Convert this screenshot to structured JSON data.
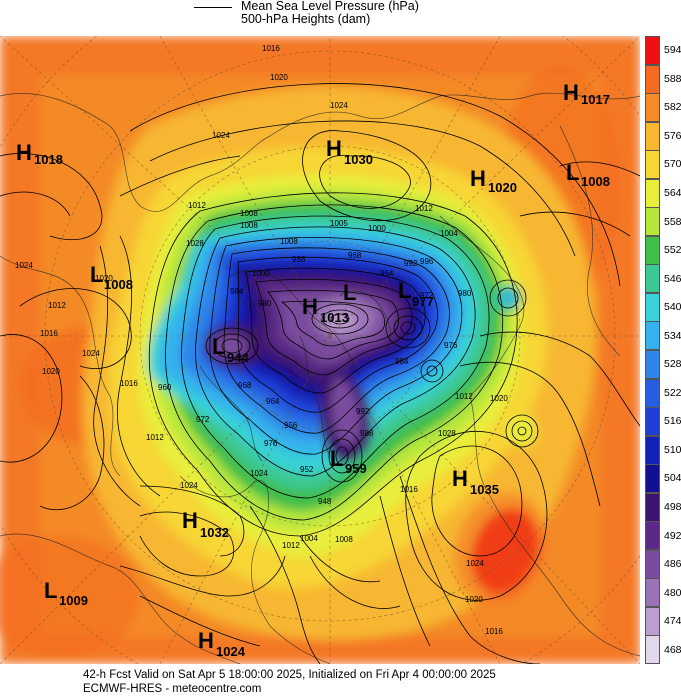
{
  "legend": {
    "line1": "Mean Sea Level Pressure (hPa)",
    "line2": "500-hPa Heights (dam)"
  },
  "footer": {
    "line1": "42-h Fcst Valid on Sat Apr  5 18:00:00 2025, Initialized on Fri Apr  4 00:00:00 2025",
    "line2": "ECMWF-HRES  - meteocentre.com"
  },
  "colorbar": [
    {
      "label": "594",
      "color": "#ee1111"
    },
    {
      "label": "588",
      "color": "#f46a22"
    },
    {
      "label": "582",
      "color": "#f48a28"
    },
    {
      "label": "576",
      "color": "#f7b730"
    },
    {
      "label": "570",
      "color": "#f7d636"
    },
    {
      "label": "564",
      "color": "#e8ee3a"
    },
    {
      "label": "558",
      "color": "#b6e63c"
    },
    {
      "label": "552",
      "color": "#3fbe48"
    },
    {
      "label": "546",
      "color": "#3cc892"
    },
    {
      "label": "540",
      "color": "#39d2d6"
    },
    {
      "label": "534",
      "color": "#35b2ec"
    },
    {
      "label": "528",
      "color": "#2f86e8"
    },
    {
      "label": "522",
      "color": "#275ee0"
    },
    {
      "label": "516",
      "color": "#1e3ed6"
    },
    {
      "label": "510",
      "color": "#1422b8"
    },
    {
      "label": "504",
      "color": "#121090"
    },
    {
      "label": "498",
      "color": "#3c1470"
    },
    {
      "label": "492",
      "color": "#5c2a86"
    },
    {
      "label": "486",
      "color": "#7a4c9e"
    },
    {
      "label": "480",
      "color": "#9a72b6"
    },
    {
      "label": "474",
      "color": "#bc9fd0"
    },
    {
      "label": "468",
      "color": "#e4d8ec"
    }
  ],
  "pressure_centers": [
    {
      "type": "H",
      "value": "1018"
    },
    {
      "type": "H",
      "value": "1030"
    },
    {
      "type": "H",
      "value": "1017"
    },
    {
      "type": "H",
      "value": "1020"
    },
    {
      "type": "L",
      "value": "1008"
    },
    {
      "type": "L",
      "value": "1008"
    },
    {
      "type": "H",
      "value": "1013"
    },
    {
      "type": "L",
      "value": "977"
    },
    {
      "type": "L",
      "value": "944"
    },
    {
      "type": "L",
      "value": "959"
    },
    {
      "type": "H",
      "value": "1035"
    },
    {
      "type": "H",
      "value": "1032"
    },
    {
      "type": "L",
      "value": "1009"
    },
    {
      "type": "H",
      "value": "1024"
    },
    {
      "type": "L",
      "value": ""
    }
  ],
  "isobar_labels": [
    "1016",
    "1020",
    "1024",
    "1024",
    "1024",
    "1008",
    "1008",
    "1012",
    "1000",
    "1005",
    "1028",
    "1012",
    "1016",
    "1020",
    "1024",
    "1012",
    "1016",
    "1012",
    "1020",
    "1024",
    "1004",
    "1008",
    "1012",
    "1016",
    "1020",
    "1024",
    "1028",
    "1024",
    "1020",
    "1016",
    "1012",
    "1008",
    "1004",
    "1000",
    "996",
    "992",
    "988",
    "984",
    "980",
    "976",
    "972",
    "968",
    "964",
    "960",
    "956",
    "952",
    "948",
    "992",
    "988",
    "984",
    "980",
    "976",
    "972",
    "968",
    "964",
    "960"
  ]
}
